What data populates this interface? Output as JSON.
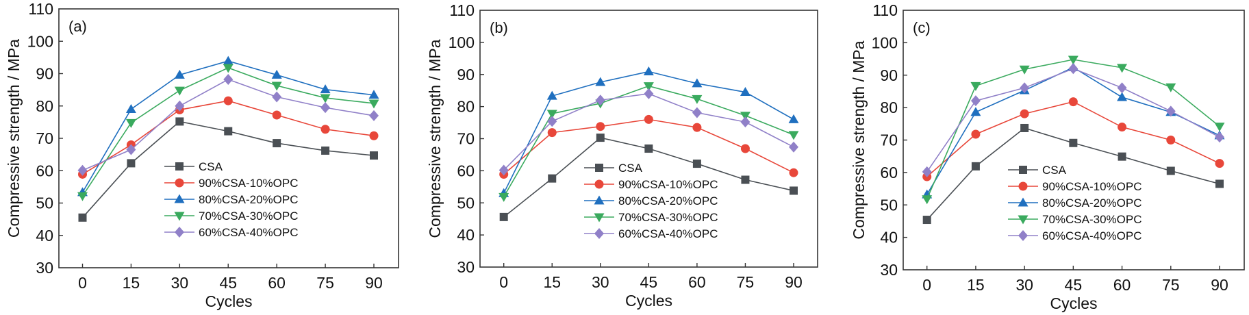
{
  "chart_data": [
    {
      "type": "line",
      "panel_label": "(a)",
      "xlabel": "Cycles",
      "ylabel": "Compressive strength / MPa",
      "x": [
        0,
        15,
        30,
        45,
        60,
        75,
        90
      ],
      "xticks": [
        "0",
        "15",
        "30",
        "45",
        "60",
        "75",
        "90"
      ],
      "ylim": [
        30,
        110
      ],
      "yticks": [
        "30",
        "40",
        "50",
        "60",
        "70",
        "80",
        "90",
        "100",
        "110"
      ],
      "grid": false,
      "legend_position": "center-bottom",
      "series": [
        {
          "name": "CSA",
          "color": "#4a4f54",
          "marker": "square",
          "values": [
            45.5,
            62.3,
            75.2,
            72.2,
            68.5,
            66.2,
            64.7
          ]
        },
        {
          "name": "90%CSA-10%OPC",
          "color": "#e8473a",
          "marker": "circle",
          "values": [
            58.9,
            68.0,
            78.8,
            81.6,
            77.2,
            72.8,
            70.8
          ]
        },
        {
          "name": "80%CSA-20%OPC",
          "color": "#1f6fbf",
          "marker": "triangle-up",
          "values": [
            53.3,
            79.0,
            89.6,
            93.9,
            89.6,
            85.1,
            83.4
          ]
        },
        {
          "name": "70%CSA-30%OPC",
          "color": "#3aaa5e",
          "marker": "triangle-down",
          "values": [
            52.2,
            74.8,
            84.8,
            91.8,
            86.3,
            82.5,
            80.8
          ]
        },
        {
          "name": "60%CSA-40%OPC",
          "color": "#9080c8",
          "marker": "diamond",
          "values": [
            60.1,
            66.5,
            80.0,
            88.2,
            82.8,
            79.5,
            77.0
          ]
        }
      ]
    },
    {
      "type": "line",
      "panel_label": "(b)",
      "xlabel": "Cycles",
      "ylabel": "Compressive strength / MPa",
      "x": [
        0,
        15,
        30,
        45,
        60,
        75,
        90
      ],
      "xticks": [
        "0",
        "15",
        "30",
        "45",
        "60",
        "75",
        "90"
      ],
      "ylim": [
        30,
        110
      ],
      "yticks": [
        "30",
        "40",
        "50",
        "60",
        "70",
        "80",
        "90",
        "100",
        "110"
      ],
      "grid": false,
      "legend_position": "center-bottom",
      "series": [
        {
          "name": "CSA",
          "color": "#4a4f54",
          "marker": "square",
          "values": [
            45.6,
            57.6,
            70.3,
            66.9,
            62.2,
            57.2,
            53.8
          ]
        },
        {
          "name": "90%CSA-10%OPC",
          "color": "#e8473a",
          "marker": "circle",
          "values": [
            58.9,
            71.9,
            73.8,
            76.0,
            73.5,
            66.9,
            59.4
          ]
        },
        {
          "name": "80%CSA-20%OPC",
          "color": "#1f6fbf",
          "marker": "triangle-up",
          "values": [
            53.0,
            83.3,
            87.6,
            90.9,
            87.2,
            84.5,
            76.0
          ]
        },
        {
          "name": "70%CSA-30%OPC",
          "color": "#3aaa5e",
          "marker": "triangle-down",
          "values": [
            51.9,
            77.8,
            81.0,
            86.4,
            82.4,
            77.2,
            71.2
          ]
        },
        {
          "name": "60%CSA-40%OPC",
          "color": "#9080c8",
          "marker": "diamond",
          "values": [
            60.2,
            75.4,
            82.0,
            84.0,
            78.1,
            75.2,
            67.4
          ]
        }
      ]
    },
    {
      "type": "line",
      "panel_label": "(c)",
      "xlabel": "Cycles",
      "ylabel": "Compressive strength / MPa",
      "x": [
        0,
        15,
        30,
        45,
        60,
        75,
        90
      ],
      "xticks": [
        "0",
        "15",
        "30",
        "45",
        "60",
        "75",
        "90"
      ],
      "ylim": [
        30,
        110
      ],
      "yticks": [
        "30",
        "40",
        "50",
        "60",
        "70",
        "80",
        "90",
        "100",
        "110"
      ],
      "grid": false,
      "legend_position": "center-bottom",
      "series": [
        {
          "name": "CSA",
          "color": "#4a4f54",
          "marker": "square",
          "values": [
            45.4,
            61.9,
            73.7,
            69.1,
            64.9,
            60.5,
            56.5
          ]
        },
        {
          "name": "90%CSA-10%OPC",
          "color": "#e8473a",
          "marker": "circle",
          "values": [
            58.7,
            71.8,
            78.1,
            81.8,
            74.0,
            70.0,
            62.8
          ]
        },
        {
          "name": "80%CSA-20%OPC",
          "color": "#1f6fbf",
          "marker": "triangle-up",
          "values": [
            53.2,
            78.6,
            85.3,
            92.4,
            83.2,
            78.6,
            71.4
          ]
        },
        {
          "name": "70%CSA-30%OPC",
          "color": "#3aaa5e",
          "marker": "triangle-down",
          "values": [
            51.8,
            86.7,
            91.8,
            94.8,
            92.3,
            86.3,
            74.2
          ]
        },
        {
          "name": "60%CSA-40%OPC",
          "color": "#9080c8",
          "marker": "diamond",
          "values": [
            60.2,
            82.1,
            86.1,
            92.0,
            86.1,
            78.9,
            70.9
          ]
        }
      ]
    }
  ]
}
